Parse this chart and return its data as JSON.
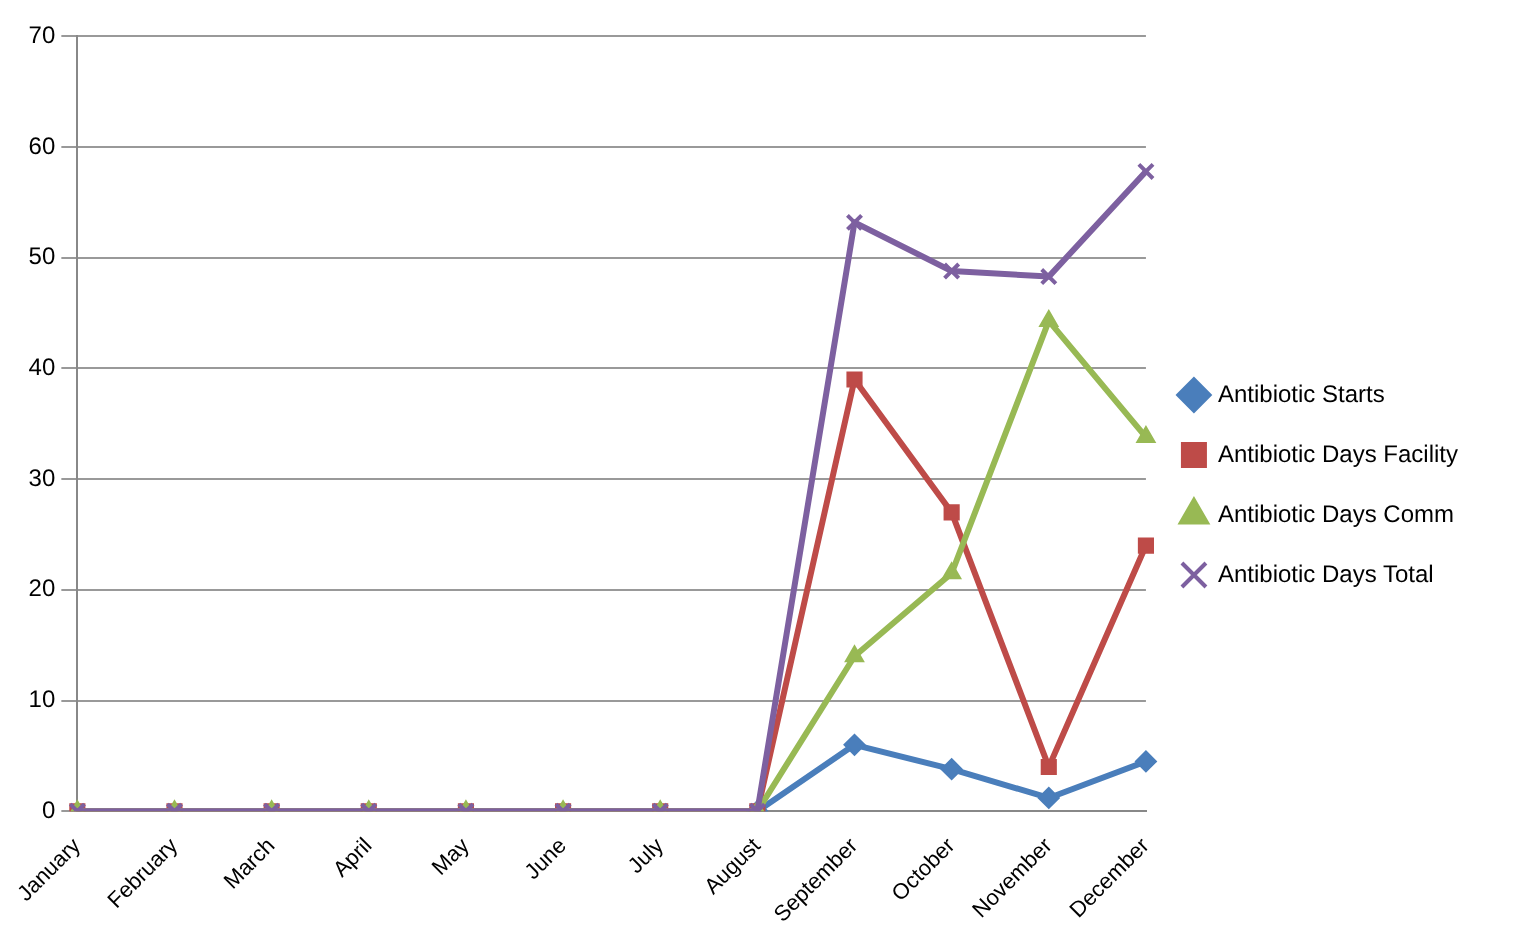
{
  "chart_data": {
    "type": "line",
    "categories": [
      "January",
      "February",
      "March",
      "April",
      "May",
      "June",
      "July",
      "August",
      "September",
      "October",
      "November",
      "December"
    ],
    "series": [
      {
        "name": "Antibiotic Starts",
        "color": "#4a7ebb",
        "marker": "diamond",
        "values": [
          null,
          null,
          null,
          null,
          null,
          null,
          null,
          0,
          6,
          3.8,
          1.2,
          4.5
        ]
      },
      {
        "name": "Antibiotic Days Facility",
        "color": "#be4b48",
        "marker": "square",
        "values": [
          0,
          0,
          0,
          0,
          0,
          0,
          0,
          0,
          39,
          27,
          4,
          24
        ]
      },
      {
        "name": "Antibiotic Days Comm",
        "color": "#98b954",
        "marker": "triangle",
        "values": [
          0,
          0,
          0,
          0,
          0,
          0,
          0,
          0,
          14,
          21.5,
          44.3,
          33.8
        ]
      },
      {
        "name": "Antibiotic Days Total",
        "color": "#7d60a0",
        "marker": "cross",
        "values": [
          0,
          0,
          0,
          0,
          0,
          0,
          0,
          0,
          53.2,
          48.8,
          48.3,
          57.8
        ]
      }
    ],
    "ylim": [
      0,
      70
    ],
    "yticks": [
      0,
      10,
      20,
      30,
      40,
      50,
      60,
      70
    ],
    "grid": "y",
    "legend": "right"
  }
}
